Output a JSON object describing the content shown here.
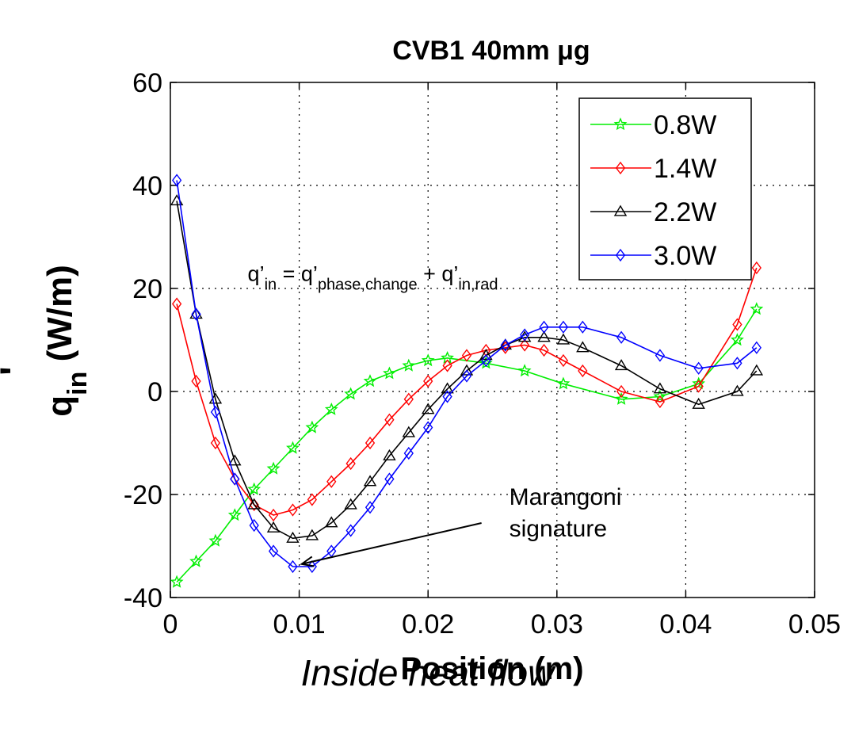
{
  "chart_data": {
    "type": "line",
    "title": "CVB1 40mm μg",
    "xlabel": "Position (m)",
    "ylabel": {
      "main": "q",
      "prime": "'",
      "sub": "in",
      "unit": " (W/m)"
    },
    "xlim": [
      0,
      0.05
    ],
    "ylim": [
      -40,
      60
    ],
    "xticks": [
      "0",
      "0.01",
      "0.02",
      "0.03",
      "0.04",
      "0.05"
    ],
    "yticks": [
      "-40",
      "-20",
      "0",
      "20",
      "40",
      "60"
    ],
    "xtick_values": [
      0,
      0.01,
      0.02,
      0.03,
      0.04,
      0.05
    ],
    "ytick_values": [
      -40,
      -20,
      0,
      20,
      40,
      60
    ],
    "grid": true,
    "legend_position": "top-right",
    "series": [
      {
        "name": "0.8W",
        "color": "#00ee00",
        "marker": "star",
        "x": [
          0.0005,
          0.002,
          0.0035,
          0.005,
          0.0065,
          0.008,
          0.0095,
          0.011,
          0.0125,
          0.014,
          0.0155,
          0.017,
          0.0185,
          0.02,
          0.0215,
          0.0245,
          0.0275,
          0.0305,
          0.035,
          0.038,
          0.041,
          0.044,
          0.0455
        ],
        "y": [
          -37,
          -33,
          -29,
          -24,
          -19,
          -15,
          -11,
          -7,
          -3.5,
          -0.5,
          2,
          3.5,
          5,
          6,
          6.5,
          5.5,
          4,
          1.5,
          -1.5,
          -1,
          1.5,
          10,
          16
        ]
      },
      {
        "name": "1.4W",
        "color": "#ff0000",
        "marker": "diamond",
        "x": [
          0.0005,
          0.002,
          0.0035,
          0.005,
          0.0065,
          0.008,
          0.0095,
          0.011,
          0.0125,
          0.014,
          0.0155,
          0.017,
          0.0185,
          0.02,
          0.0215,
          0.023,
          0.0245,
          0.026,
          0.0275,
          0.029,
          0.0305,
          0.032,
          0.035,
          0.038,
          0.041,
          0.044,
          0.0455
        ],
        "y": [
          17,
          2,
          -10,
          -17,
          -22,
          -24,
          -23,
          -21,
          -17.5,
          -14,
          -10,
          -5.5,
          -1.5,
          2,
          5,
          7,
          8,
          8.5,
          9,
          8,
          6,
          4,
          0,
          -2,
          1,
          13,
          24
        ]
      },
      {
        "name": "2.2W",
        "color": "#000000",
        "marker": "triangle",
        "x": [
          0.0005,
          0.002,
          0.0035,
          0.005,
          0.0065,
          0.008,
          0.0095,
          0.011,
          0.0125,
          0.014,
          0.0155,
          0.017,
          0.0185,
          0.02,
          0.0215,
          0.023,
          0.0245,
          0.026,
          0.0275,
          0.029,
          0.0305,
          0.032,
          0.035,
          0.038,
          0.041,
          0.044,
          0.0455
        ],
        "y": [
          37,
          15,
          -1.5,
          -13.5,
          -22,
          -26.5,
          -28.5,
          -28,
          -25.5,
          -22,
          -17.5,
          -12.5,
          -8,
          -3.5,
          0.5,
          4,
          7,
          9,
          10.5,
          10.5,
          10,
          8.5,
          5,
          0.5,
          -2.5,
          0,
          4
        ]
      },
      {
        "name": "3.0W",
        "color": "#0000ff",
        "marker": "diamond",
        "x": [
          0.0005,
          0.002,
          0.0035,
          0.005,
          0.0065,
          0.008,
          0.0095,
          0.011,
          0.0125,
          0.014,
          0.0155,
          0.017,
          0.0185,
          0.02,
          0.0215,
          0.023,
          0.0245,
          0.026,
          0.0275,
          0.029,
          0.0305,
          0.032,
          0.035,
          0.038,
          0.041,
          0.044,
          0.0455
        ],
        "y": [
          41,
          15,
          -4,
          -17,
          -26,
          -31,
          -34,
          -34,
          -31,
          -27,
          -22.5,
          -17,
          -12,
          -7,
          -1,
          3,
          6,
          9,
          11,
          12.5,
          12.5,
          12.5,
          10.5,
          7,
          4.5,
          5.5,
          8.5
        ]
      }
    ],
    "annotations": [
      {
        "text_main": "q’",
        "sub1": "in",
        "eq": " = q’",
        "sub2": "phase,change",
        "plus": " + q’",
        "sub3": "in,rad",
        "x": 0.006,
        "y": 21.5
      },
      {
        "line1": "Marangoni",
        "line2": "signature",
        "x": 0.0263,
        "y": -22,
        "arrow_to": [
          0.0097,
          -33.5
        ]
      }
    ]
  },
  "caption": "Inside heat flow"
}
